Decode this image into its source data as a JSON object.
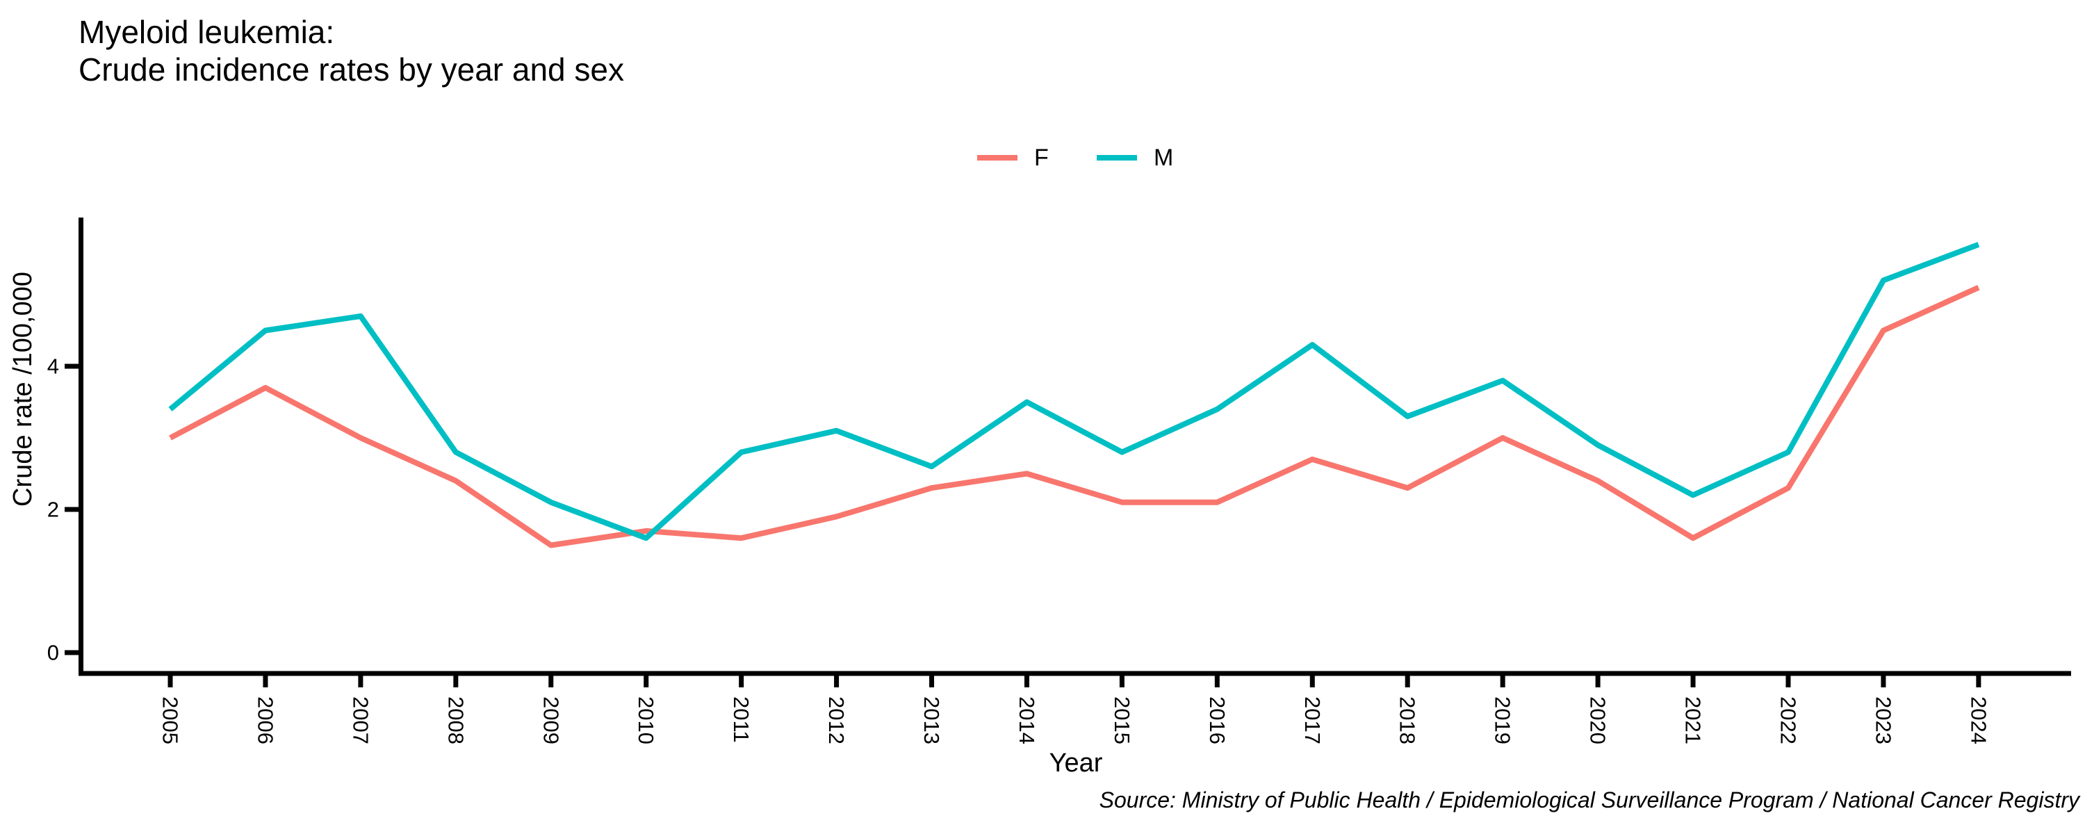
{
  "title": {
    "line1": "Myeloid leukemia:",
    "line2": "Crude incidence rates by year and sex"
  },
  "chart_data": {
    "type": "line",
    "x": [
      2005,
      2006,
      2007,
      2008,
      2009,
      2010,
      2011,
      2012,
      2013,
      2014,
      2015,
      2016,
      2017,
      2018,
      2019,
      2020,
      2021,
      2022,
      2023,
      2024
    ],
    "series": [
      {
        "name": "F",
        "color": "#F8766D",
        "values": [
          3.0,
          3.7,
          3.0,
          2.4,
          1.5,
          1.7,
          1.6,
          1.9,
          2.3,
          2.5,
          2.1,
          2.1,
          2.7,
          2.3,
          3.0,
          2.4,
          1.6,
          2.3,
          4.5,
          5.1
        ]
      },
      {
        "name": "M",
        "color": "#00BFC4",
        "values": [
          3.4,
          4.5,
          4.7,
          2.8,
          2.1,
          1.6,
          2.8,
          3.1,
          2.6,
          3.5,
          2.8,
          3.4,
          4.3,
          3.3,
          3.8,
          2.9,
          2.2,
          2.8,
          5.2,
          5.7
        ]
      }
    ],
    "xlabel": "Year",
    "ylabel": "Crude rate /100,000",
    "yticks": [
      0,
      2,
      4
    ],
    "ylim": [
      0,
      6
    ],
    "xlim": [
      2005,
      2024
    ],
    "grid": false,
    "legend_position": "top-center",
    "source": "Source: Ministry of Public Health / Epidemiological Surveillance Program / National Cancer Registry"
  }
}
